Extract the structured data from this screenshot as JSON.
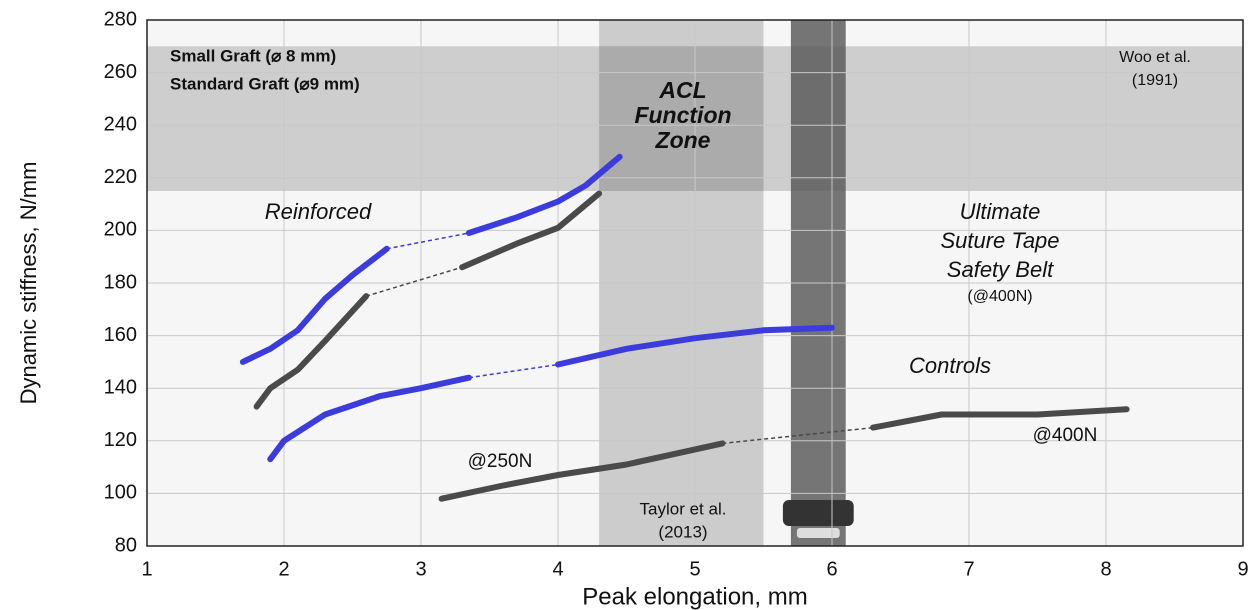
{
  "chart_data": {
    "type": "line",
    "x_label": "Peak elongation, mm",
    "y_label": "Dynamic stiffness, N/mm",
    "xlim": [
      1,
      9
    ],
    "xticks": [
      1,
      2,
      3,
      4,
      5,
      6,
      7,
      8,
      9
    ],
    "ylim": [
      80,
      280
    ],
    "yticks": [
      80,
      100,
      120,
      140,
      160,
      180,
      200,
      220,
      240,
      260,
      280
    ],
    "grid": true,
    "legend": [
      {
        "name": "Small Graft (⌀ 8 mm)",
        "color": "#4a4a4a"
      },
      {
        "name": "Standard Graft (⌀9 mm)",
        "color": "#3c3cdc"
      }
    ],
    "bands": [
      {
        "axis": "y",
        "range": [
          215,
          270
        ],
        "color": "#000000"
      },
      {
        "axis": "x",
        "range": [
          4.3,
          5.5
        ],
        "color": "#000000"
      },
      {
        "axis": "x",
        "range": [
          5.7,
          6.1
        ],
        "color": "#555555"
      }
    ],
    "series": [
      {
        "color": "#3c3cdc",
        "x": [
          1.7,
          1.9,
          2.1,
          2.3,
          2.5,
          2.75,
          3.0,
          3.35,
          3.7,
          4.0,
          4.2,
          4.45
        ],
        "values": [
          150,
          155,
          162,
          174,
          183,
          193,
          null,
          199,
          205,
          211,
          217,
          228
        ]
      },
      {
        "color": "#4a4a4a",
        "x": [
          1.8,
          1.9,
          2.1,
          2.3,
          2.6,
          3.0,
          3.3,
          3.7,
          4.0,
          4.3
        ],
        "values": [
          133,
          140,
          147,
          158,
          175,
          null,
          186,
          195,
          201,
          214
        ]
      },
      {
        "color": "#3c3cdc",
        "x": [
          1.9,
          2.0,
          2.3,
          2.7,
          3.0,
          3.35,
          3.7,
          4.0,
          4.5,
          5.0,
          5.5,
          6.0
        ],
        "values": [
          113,
          120,
          130,
          137,
          140,
          144,
          null,
          149,
          155,
          159,
          162,
          163
        ]
      },
      {
        "color": "#4a4a4a",
        "x": [
          3.15,
          3.6,
          4.0,
          4.5,
          5.2,
          5.8,
          6.3,
          6.8,
          7.5,
          8.15
        ],
        "values": [
          98,
          103,
          107,
          111,
          119,
          null,
          125,
          130,
          130,
          132
        ]
      }
    ],
    "annotations": [
      {
        "lines": [
          "Woo et al.",
          "(1991)"
        ]
      },
      {
        "lines": [
          "ACL",
          "Function",
          "Zone"
        ]
      },
      {
        "lines": [
          "Reinforced"
        ]
      },
      {
        "lines": [
          "Ultimate",
          "Suture Tape",
          "Safety Belt",
          "(@400N)"
        ]
      },
      {
        "lines": [
          "Controls"
        ]
      },
      {
        "lines": [
          "@250N"
        ]
      },
      {
        "lines": [
          "@400N"
        ]
      },
      {
        "lines": [
          "Taylor et al.",
          "(2013)"
        ]
      }
    ]
  }
}
